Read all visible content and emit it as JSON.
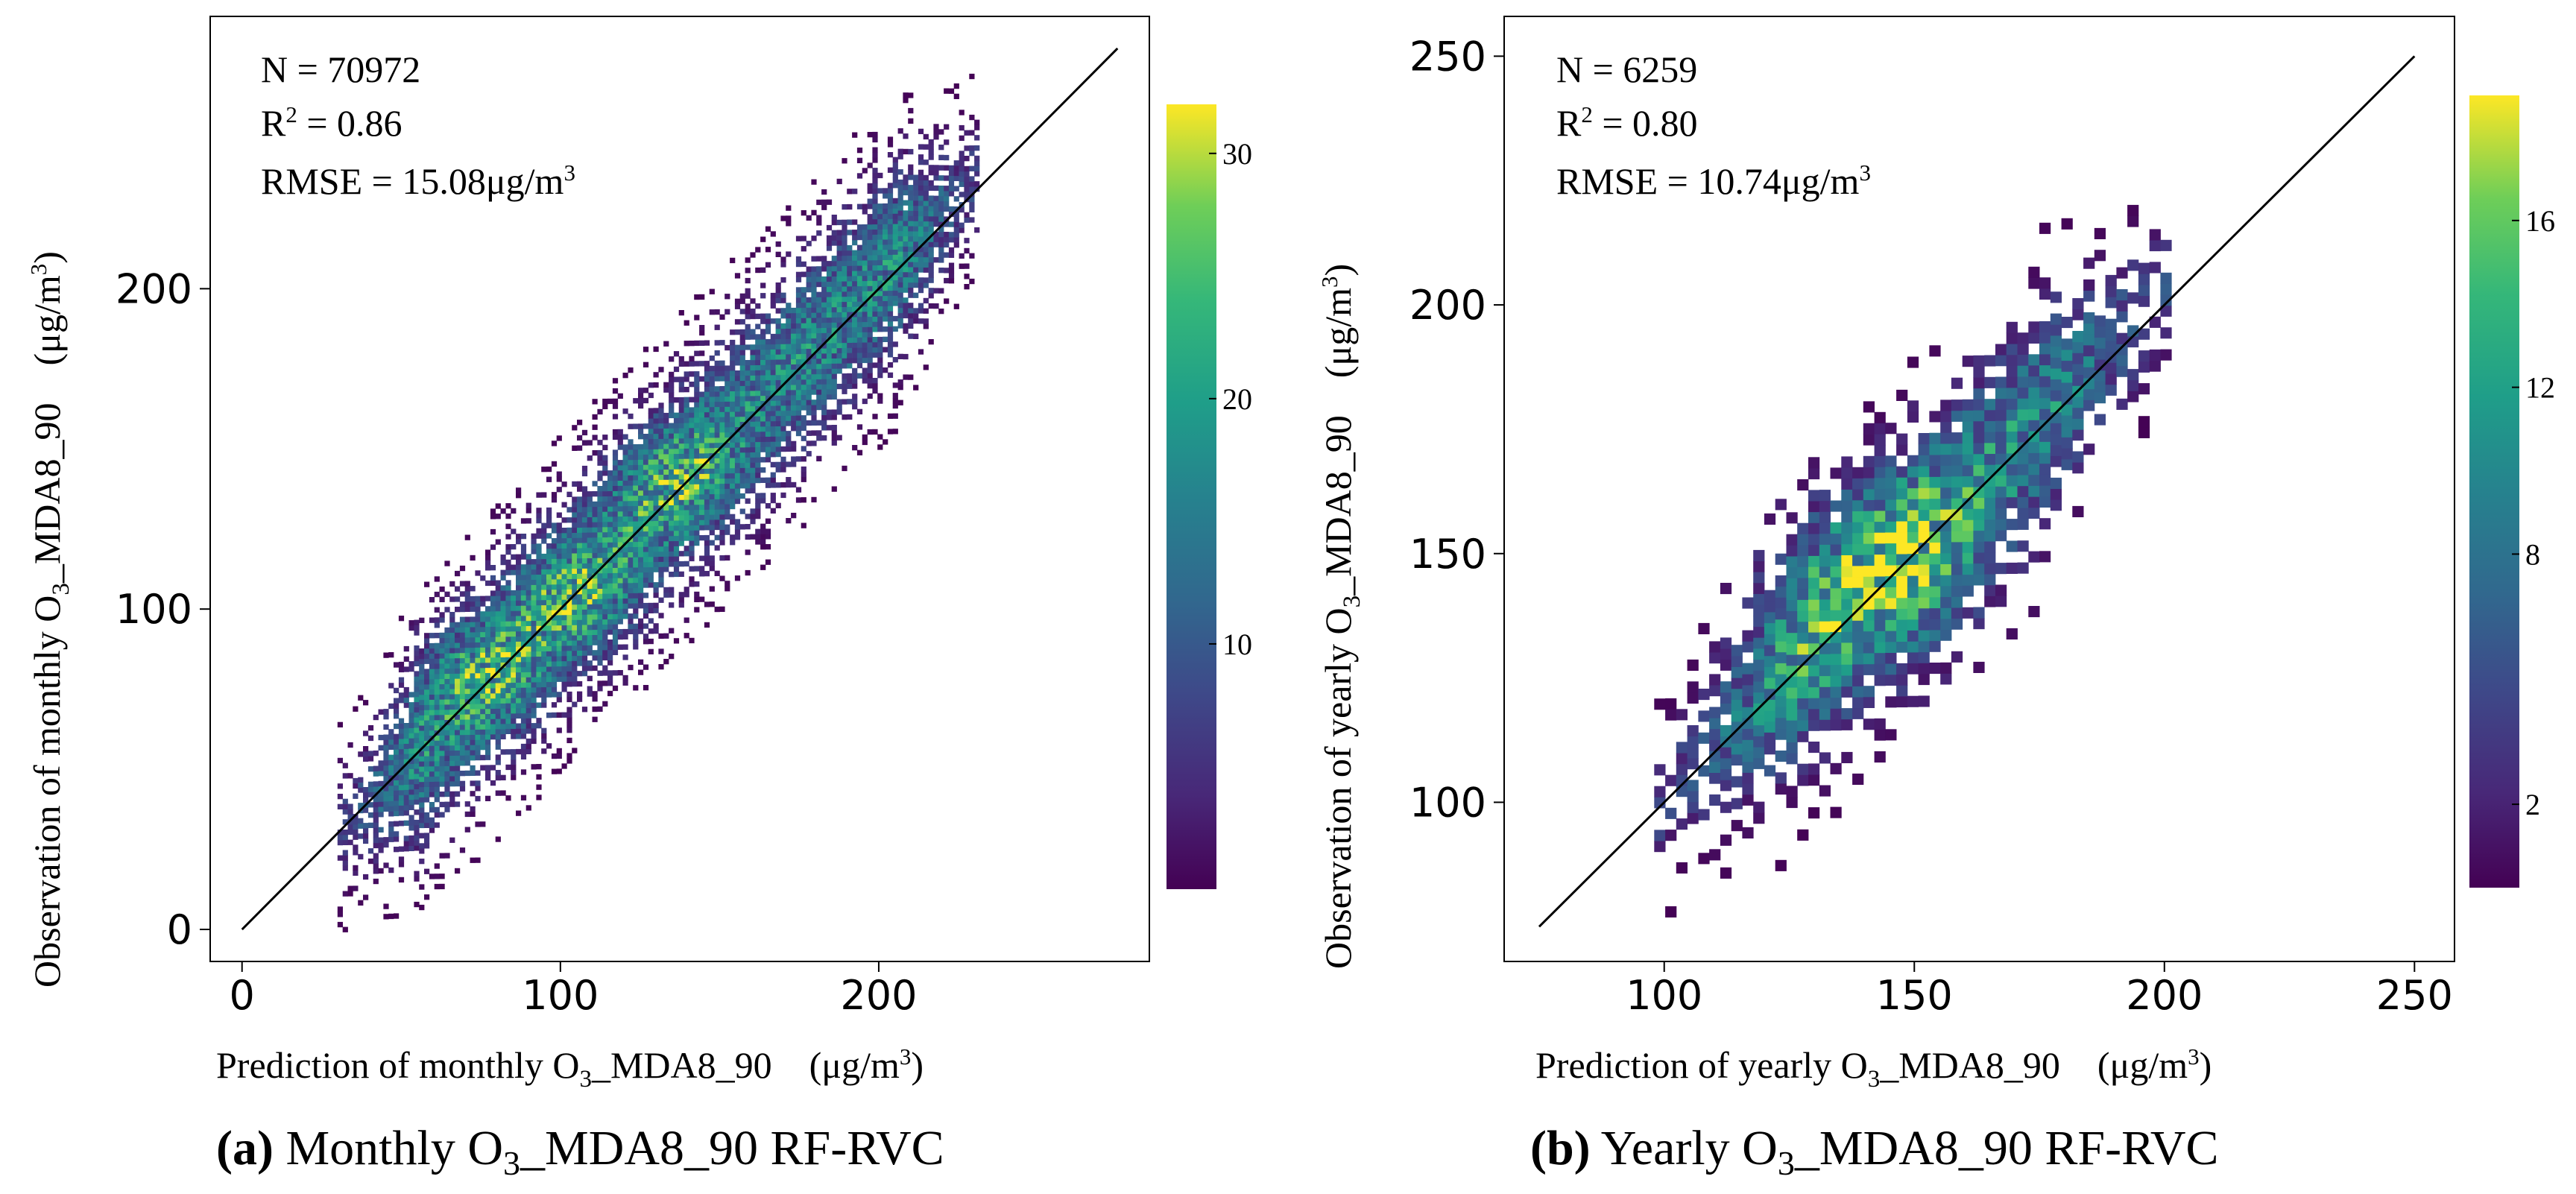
{
  "charts": [
    {
      "id": "a",
      "chart_data": {
        "type": "heatmap",
        "title": "",
        "xlabel": {
          "pre": "Prediction of monthly O",
          "sub": "3",
          "post": "_MDA8_90　(μg/m",
          "sup": "3",
          "end": ")"
        },
        "ylabel": {
          "pre": "Observation of monthly O",
          "sub": "3",
          "post": "_MDA8_90　(μg/m",
          "sup": "3",
          "end": ")"
        },
        "xlim": [
          -10,
          285
        ],
        "ylim": [
          -10,
          285
        ],
        "xticks": [
          0,
          100,
          200
        ],
        "yticks": [
          0,
          100,
          200
        ],
        "xtick_labels": [
          "0",
          "100",
          "200"
        ],
        "ytick_labels": [
          "0",
          "100",
          "200"
        ],
        "one_to_one_line": [
          [
            0,
            0
          ],
          [
            275,
            275
          ]
        ],
        "stats": {
          "n": "N = 70972",
          "r2": {
            "pre": "R",
            "sup": "2",
            "post": " = 0.86"
          },
          "rmse": {
            "pre": "RMSE = 15.08μg/m",
            "sup": "3"
          }
        },
        "colorbar": {
          "range": [
            0,
            32
          ],
          "ticks": [
            10,
            20,
            30
          ],
          "tick_labels": [
            "10",
            "20",
            "30"
          ]
        },
        "density": {
          "bin": 1.6,
          "xmin": 30,
          "xmax": 230,
          "spread": 28,
          "peak": 32,
          "hot_centers": [
            [
              75,
              78
            ],
            [
              105,
              102
            ],
            [
              135,
              140
            ]
          ]
        },
        "caption": {
          "bold": "(a)",
          "pre": " Monthly O",
          "sub": "3",
          "post": "_MDA8_90 RF-RVC"
        }
      }
    },
    {
      "id": "b",
      "chart_data": {
        "type": "heatmap",
        "title": "",
        "xlabel": {
          "pre": "Prediction of yearly O",
          "sub": "3",
          "post": "_MDA8_90　(μg/m",
          "sup": "3",
          "end": ")"
        },
        "ylabel": {
          "pre": "Observation of yearly O",
          "sub": "3",
          "post": "_MDA8_90　(μg/m",
          "sup": "3",
          "end": ")"
        },
        "xlim": [
          68,
          258
        ],
        "ylim": [
          68,
          258
        ],
        "xticks": [
          100,
          150,
          200,
          250
        ],
        "yticks": [
          100,
          150,
          200,
          250
        ],
        "xtick_labels": [
          "100",
          "150",
          "200",
          "250"
        ],
        "ytick_labels": [
          "100",
          "150",
          "200",
          "250"
        ],
        "one_to_one_line": [
          [
            75,
            75
          ],
          [
            250,
            250
          ]
        ],
        "stats": {
          "n": "N = 6259",
          "r2": {
            "pre": "R",
            "sup": "2",
            "post": " = 0.80"
          },
          "rmse": {
            "pre": "RMSE = 10.74μg/m",
            "sup": "3"
          }
        },
        "colorbar": {
          "range": [
            0,
            19
          ],
          "ticks": [
            2,
            8,
            12,
            16
          ],
          "tick_labels": [
            "2",
            "8",
            "12",
            "16"
          ]
        },
        "density": {
          "bin": 2.2,
          "xmin": 98,
          "xmax": 200,
          "spread": 20,
          "peak": 19,
          "hot_centers": [
            [
              135,
              139
            ],
            [
              148,
              150
            ]
          ]
        },
        "caption": {
          "bold": "(b)",
          "pre": " Yearly O",
          "sub": "3",
          "post": "_MDA8_90 RF-RVC"
        }
      }
    }
  ]
}
